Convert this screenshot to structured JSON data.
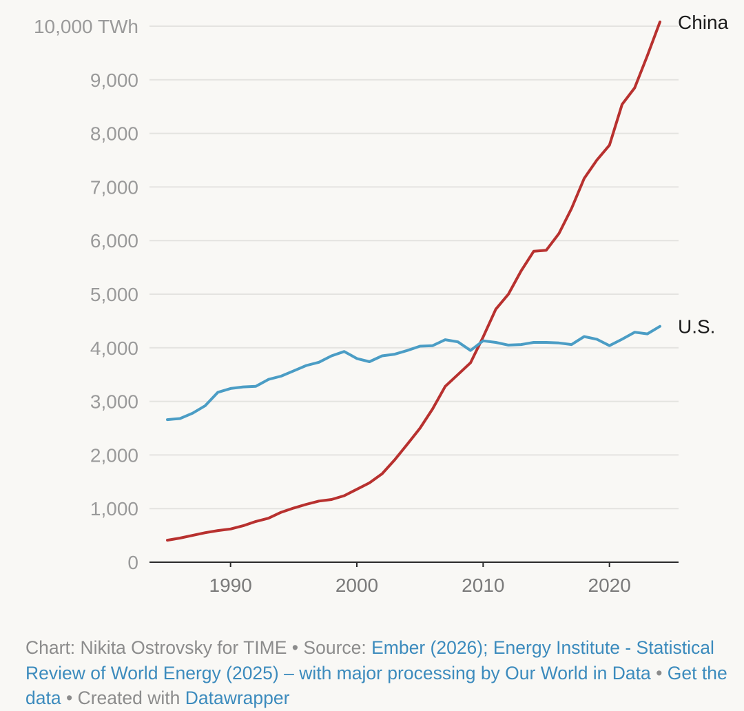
{
  "chart_data": {
    "type": "line",
    "ylim": [
      0,
      10000
    ],
    "yticks": [
      {
        "value": 0,
        "label": "0"
      },
      {
        "value": 1000,
        "label": "1,000"
      },
      {
        "value": 2000,
        "label": "2,000"
      },
      {
        "value": 3000,
        "label": "3,000"
      },
      {
        "value": 4000,
        "label": "4,000"
      },
      {
        "value": 5000,
        "label": "5,000"
      },
      {
        "value": 6000,
        "label": "6,000"
      },
      {
        "value": 7000,
        "label": "7,000"
      },
      {
        "value": 8000,
        "label": "8,000"
      },
      {
        "value": 9000,
        "label": "9,000"
      },
      {
        "value": 10000,
        "label": "10,000 TWh"
      }
    ],
    "xlim": [
      1985,
      2024
    ],
    "xticks": [
      {
        "value": 1990,
        "label": "1990"
      },
      {
        "value": 2000,
        "label": "2000"
      },
      {
        "value": 2010,
        "label": "2010"
      },
      {
        "value": 2020,
        "label": "2020"
      }
    ],
    "grid": true,
    "x": [
      1985,
      1986,
      1987,
      1988,
      1989,
      1990,
      1991,
      1992,
      1993,
      1994,
      1995,
      1996,
      1997,
      1998,
      1999,
      2000,
      2001,
      2002,
      2003,
      2004,
      2005,
      2006,
      2007,
      2008,
      2009,
      2010,
      2011,
      2012,
      2013,
      2014,
      2015,
      2016,
      2017,
      2018,
      2019,
      2020,
      2021,
      2022,
      2023,
      2024
    ],
    "series": [
      {
        "name": "China",
        "color": "#b8312f",
        "values": [
          410,
          450,
          500,
          550,
          590,
          620,
          680,
          760,
          820,
          930,
          1010,
          1080,
          1140,
          1170,
          1240,
          1360,
          1480,
          1650,
          1910,
          2200,
          2500,
          2860,
          3280,
          3500,
          3720,
          4200,
          4720,
          5000,
          5430,
          5800,
          5820,
          6130,
          6600,
          7160,
          7500,
          7780,
          8540,
          8850,
          9450,
          10080
        ]
      },
      {
        "name": "U.S.",
        "color": "#4b9dc5",
        "values": [
          2660,
          2680,
          2780,
          2920,
          3170,
          3240,
          3270,
          3280,
          3410,
          3470,
          3570,
          3670,
          3730,
          3850,
          3930,
          3800,
          3740,
          3850,
          3880,
          3950,
          4030,
          4040,
          4150,
          4110,
          3950,
          4130,
          4100,
          4050,
          4060,
          4100,
          4100,
          4090,
          4060,
          4210,
          4160,
          4040,
          4160,
          4290,
          4260,
          4400
        ]
      }
    ]
  },
  "footer": {
    "prefix": "Chart: Nikita Ostrovsky for TIME • Source: ",
    "source_link": "Ember (2026); Energy Institute - Statistical Review of World Energy (2025) – with major processing by Our World in Data",
    "sep1": " • ",
    "data_link": "Get the data",
    "sep2": " • Created with ",
    "tool_link": "Datawrapper"
  }
}
